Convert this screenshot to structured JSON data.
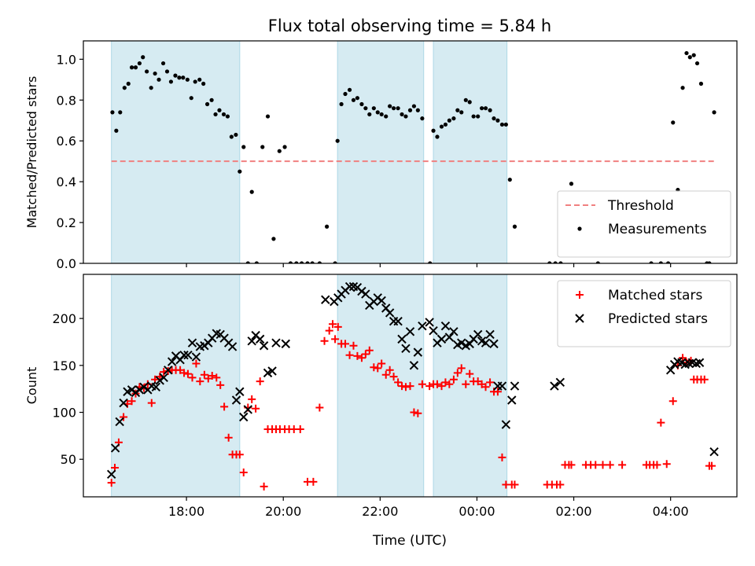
{
  "title": "Flux total observing time = 5.84 h",
  "xlabel": "Time (UTC)",
  "xticks": [
    {
      "t": 18.0,
      "label": "18:00"
    },
    {
      "t": 20.0,
      "label": "20:00"
    },
    {
      "t": 22.0,
      "label": "22:00"
    },
    {
      "t": 24.0,
      "label": "00:00"
    },
    {
      "t": 26.0,
      "label": "02:00"
    },
    {
      "t": 28.0,
      "label": "04:00"
    }
  ],
  "colors": {
    "shade": "#add8e6",
    "threshold": "#f08080",
    "measure": "#000000",
    "matched": "#ff0000",
    "predicted": "#000000"
  },
  "chart_data": [
    {
      "type": "scatter",
      "ylabel": "Matched/Predicted stars",
      "xlim": [
        15.87,
        29.37
      ],
      "ylim": [
        0,
        1.09
      ],
      "yticks": [
        {
          "v": 0.0,
          "label": "0.0"
        },
        {
          "v": 0.2,
          "label": "0.2"
        },
        {
          "v": 0.4,
          "label": "0.4"
        },
        {
          "v": 0.6,
          "label": "0.6"
        },
        {
          "v": 0.8,
          "label": "0.8"
        },
        {
          "v": 1.0,
          "label": "1.0"
        }
      ],
      "shaded_intervals": [
        [
          16.45,
          19.1
        ],
        [
          21.12,
          22.9
        ],
        [
          23.1,
          24.62
        ]
      ],
      "threshold": {
        "name": "Threshold",
        "y": 0.5,
        "x_range": [
          16.45,
          28.9
        ]
      },
      "legend_position": "lower-right",
      "legend": [
        {
          "name": "Threshold",
          "kind": "dash"
        },
        {
          "name": "Measurements",
          "kind": "dot"
        }
      ],
      "series": [
        {
          "name": "Measurements",
          "x": [
            16.47,
            16.55,
            16.63,
            16.72,
            16.8,
            16.87,
            16.95,
            17.03,
            17.1,
            17.18,
            17.27,
            17.35,
            17.43,
            17.52,
            17.6,
            17.68,
            17.77,
            17.85,
            17.93,
            18.02,
            18.1,
            18.18,
            18.27,
            18.35,
            18.43,
            18.52,
            18.6,
            18.68,
            18.77,
            18.85,
            18.93,
            19.02,
            19.1,
            19.18,
            19.27,
            19.35,
            19.45,
            19.57,
            19.68,
            19.8,
            19.92,
            20.03,
            20.15,
            20.27,
            20.38,
            20.5,
            20.6,
            20.75,
            20.9,
            21.07,
            21.12,
            21.2,
            21.28,
            21.37,
            21.45,
            21.53,
            21.62,
            21.7,
            21.78,
            21.87,
            21.95,
            22.03,
            22.12,
            22.2,
            22.28,
            22.37,
            22.45,
            22.53,
            22.62,
            22.7,
            22.78,
            22.87,
            23.03,
            23.1,
            23.18,
            23.27,
            23.35,
            23.43,
            23.52,
            23.6,
            23.68,
            23.77,
            23.85,
            23.93,
            24.02,
            24.1,
            24.18,
            24.27,
            24.35,
            24.43,
            24.52,
            24.6,
            24.68,
            24.78,
            25.5,
            25.62,
            25.73,
            25.95,
            26.5,
            27.6,
            27.8,
            27.95,
            28.05,
            28.15,
            28.25,
            28.33,
            28.4,
            28.48,
            28.55,
            28.63,
            28.75,
            28.8,
            28.9
          ],
          "y": [
            0.74,
            0.65,
            0.74,
            0.86,
            0.88,
            0.96,
            0.96,
            0.98,
            1.01,
            0.94,
            0.86,
            0.93,
            0.9,
            0.98,
            0.94,
            0.89,
            0.92,
            0.91,
            0.91,
            0.9,
            0.81,
            0.89,
            0.9,
            0.88,
            0.78,
            0.8,
            0.73,
            0.75,
            0.73,
            0.72,
            0.62,
            0.63,
            0.45,
            0.57,
            0.0,
            0.35,
            0.0,
            0.57,
            0.72,
            0.12,
            0.55,
            0.57,
            0.0,
            0.0,
            0.0,
            0.0,
            0.0,
            0.0,
            0.18,
            0.0,
            0.6,
            0.78,
            0.83,
            0.85,
            0.8,
            0.81,
            0.78,
            0.76,
            0.73,
            0.76,
            0.74,
            0.73,
            0.72,
            0.77,
            0.76,
            0.76,
            0.73,
            0.72,
            0.75,
            0.77,
            0.75,
            0.71,
            0.0,
            0.65,
            0.62,
            0.67,
            0.68,
            0.7,
            0.71,
            0.75,
            0.74,
            0.8,
            0.79,
            0.72,
            0.72,
            0.76,
            0.76,
            0.75,
            0.71,
            0.7,
            0.68,
            0.68,
            0.41,
            0.18,
            0.0,
            0.0,
            0.0,
            0.39,
            0.0,
            0.0,
            0.0,
            0.0,
            0.69,
            0.36,
            0.86,
            1.03,
            1.01,
            1.02,
            0.98,
            0.88,
            0.0,
            0.0,
            0.74
          ]
        }
      ]
    },
    {
      "type": "scatter",
      "ylabel": "Count",
      "xlim": [
        15.87,
        29.37
      ],
      "ylim": [
        10,
        247
      ],
      "yticks": [
        {
          "v": 50,
          "label": "50"
        },
        {
          "v": 100,
          "label": "100"
        },
        {
          "v": 150,
          "label": "150"
        },
        {
          "v": 200,
          "label": "200"
        }
      ],
      "shaded_intervals": [
        [
          16.45,
          19.1
        ],
        [
          21.12,
          22.9
        ],
        [
          23.1,
          24.62
        ]
      ],
      "legend_position": "upper-right",
      "legend": [
        {
          "name": "Matched stars",
          "kind": "plus"
        },
        {
          "name": "Predicted stars",
          "kind": "cross"
        }
      ],
      "series": [
        {
          "name": "Matched stars",
          "marker": "plus",
          "x": [
            16.45,
            16.52,
            16.6,
            16.7,
            16.78,
            16.87,
            16.95,
            17.03,
            17.12,
            17.2,
            17.28,
            17.35,
            17.45,
            17.53,
            17.62,
            17.7,
            17.78,
            17.87,
            17.95,
            18.03,
            18.12,
            18.2,
            18.28,
            18.37,
            18.45,
            18.53,
            18.62,
            18.7,
            18.78,
            18.87,
            18.95,
            19.03,
            19.1,
            19.18,
            19.27,
            19.35,
            19.43,
            19.52,
            19.6,
            19.68,
            19.77,
            19.85,
            19.93,
            20.03,
            20.12,
            20.22,
            20.35,
            20.5,
            20.62,
            20.75,
            20.85,
            20.95,
            21.02,
            21.07,
            21.13,
            21.2,
            21.28,
            21.37,
            21.45,
            21.53,
            21.62,
            21.7,
            21.78,
            21.87,
            21.95,
            22.03,
            22.12,
            22.2,
            22.28,
            22.37,
            22.45,
            22.53,
            22.62,
            22.7,
            22.78,
            22.87,
            23.02,
            23.1,
            23.18,
            23.27,
            23.35,
            23.43,
            23.52,
            23.6,
            23.68,
            23.77,
            23.85,
            23.93,
            24.02,
            24.1,
            24.18,
            24.27,
            24.35,
            24.43,
            24.52,
            24.6,
            24.72,
            24.78,
            25.45,
            25.55,
            25.65,
            25.72,
            25.82,
            25.9,
            25.95,
            26.25,
            26.35,
            26.45,
            26.6,
            26.75,
            27.0,
            27.5,
            27.57,
            27.65,
            27.72,
            27.8,
            27.92,
            28.05,
            28.15,
            28.25,
            28.33,
            28.42,
            28.48,
            28.55,
            28.63,
            28.7,
            28.8,
            28.85
          ],
          "y": [
            25,
            41,
            68,
            95,
            109,
            112,
            120,
            127,
            126,
            130,
            110,
            135,
            138,
            143,
            144,
            145,
            145,
            145,
            142,
            141,
            137,
            152,
            133,
            140,
            136,
            139,
            137,
            129,
            106,
            73,
            55,
            55,
            55,
            36,
            105,
            114,
            104,
            133,
            21,
            82,
            82,
            82,
            82,
            82,
            82,
            82,
            82,
            26,
            26,
            105,
            176,
            187,
            194,
            178,
            191,
            173,
            173,
            161,
            171,
            160,
            158,
            162,
            166,
            148,
            147,
            152,
            140,
            145,
            138,
            132,
            128,
            127,
            128,
            100,
            99,
            130,
            128,
            130,
            130,
            128,
            132,
            130,
            135,
            142,
            147,
            130,
            141,
            133,
            133,
            130,
            127,
            132,
            122,
            122,
            52,
            23,
            23,
            23,
            23,
            23,
            23,
            23,
            44,
            44,
            44,
            44,
            44,
            44,
            44,
            44,
            44,
            44,
            44,
            44,
            44,
            89,
            45,
            112,
            150,
            158,
            153,
            155,
            135,
            135,
            135,
            135,
            43,
            43
          ],
          "note": ""
        },
        {
          "name": "Predicted stars",
          "marker": "cross",
          "x": [
            16.45,
            16.53,
            16.62,
            16.7,
            16.78,
            16.87,
            16.95,
            17.03,
            17.12,
            17.2,
            17.28,
            17.37,
            17.45,
            17.53,
            17.62,
            17.7,
            17.78,
            17.87,
            17.95,
            18.03,
            18.12,
            18.2,
            18.28,
            18.37,
            18.45,
            18.53,
            18.62,
            18.7,
            18.78,
            18.87,
            18.95,
            19.03,
            19.1,
            19.18,
            19.27,
            19.35,
            19.43,
            19.52,
            19.6,
            19.68,
            19.77,
            19.85,
            20.05,
            20.87,
            21.05,
            21.13,
            21.2,
            21.28,
            21.37,
            21.45,
            21.53,
            21.62,
            21.7,
            21.78,
            21.87,
            21.95,
            22.03,
            22.12,
            22.2,
            22.28,
            22.37,
            22.45,
            22.53,
            22.62,
            22.7,
            22.78,
            22.87,
            23.02,
            23.1,
            23.18,
            23.27,
            23.35,
            23.43,
            23.52,
            23.6,
            23.68,
            23.77,
            23.85,
            23.93,
            24.02,
            24.1,
            24.18,
            24.27,
            24.35,
            24.43,
            24.52,
            24.6,
            24.72,
            24.78,
            25.6,
            25.72,
            28.0,
            28.08,
            28.15,
            28.23,
            28.3,
            28.38,
            28.45,
            28.53,
            28.6,
            28.9
          ],
          "y": [
            34,
            62,
            90,
            110,
            122,
            124,
            121,
            124,
            127,
            124,
            128,
            127,
            134,
            137,
            145,
            154,
            160,
            156,
            161,
            161,
            174,
            159,
            170,
            171,
            174,
            179,
            184,
            183,
            179,
            174,
            170,
            113,
            122,
            95,
            103,
            176,
            182,
            178,
            171,
            142,
            144,
            174,
            173,
            220,
            218,
            222,
            226,
            230,
            234,
            234,
            233,
            229,
            226,
            214,
            218,
            222,
            219,
            211,
            206,
            197,
            197,
            178,
            168,
            186,
            150,
            164,
            192,
            196,
            187,
            174,
            178,
            192,
            180,
            186,
            172,
            174,
            171,
            173,
            178,
            183,
            176,
            174,
            183,
            173,
            128,
            128,
            87,
            113,
            128,
            128,
            132,
            145,
            151,
            154,
            153,
            151,
            152,
            153,
            152,
            153,
            58
          ],
          "note": ""
        }
      ]
    }
  ]
}
